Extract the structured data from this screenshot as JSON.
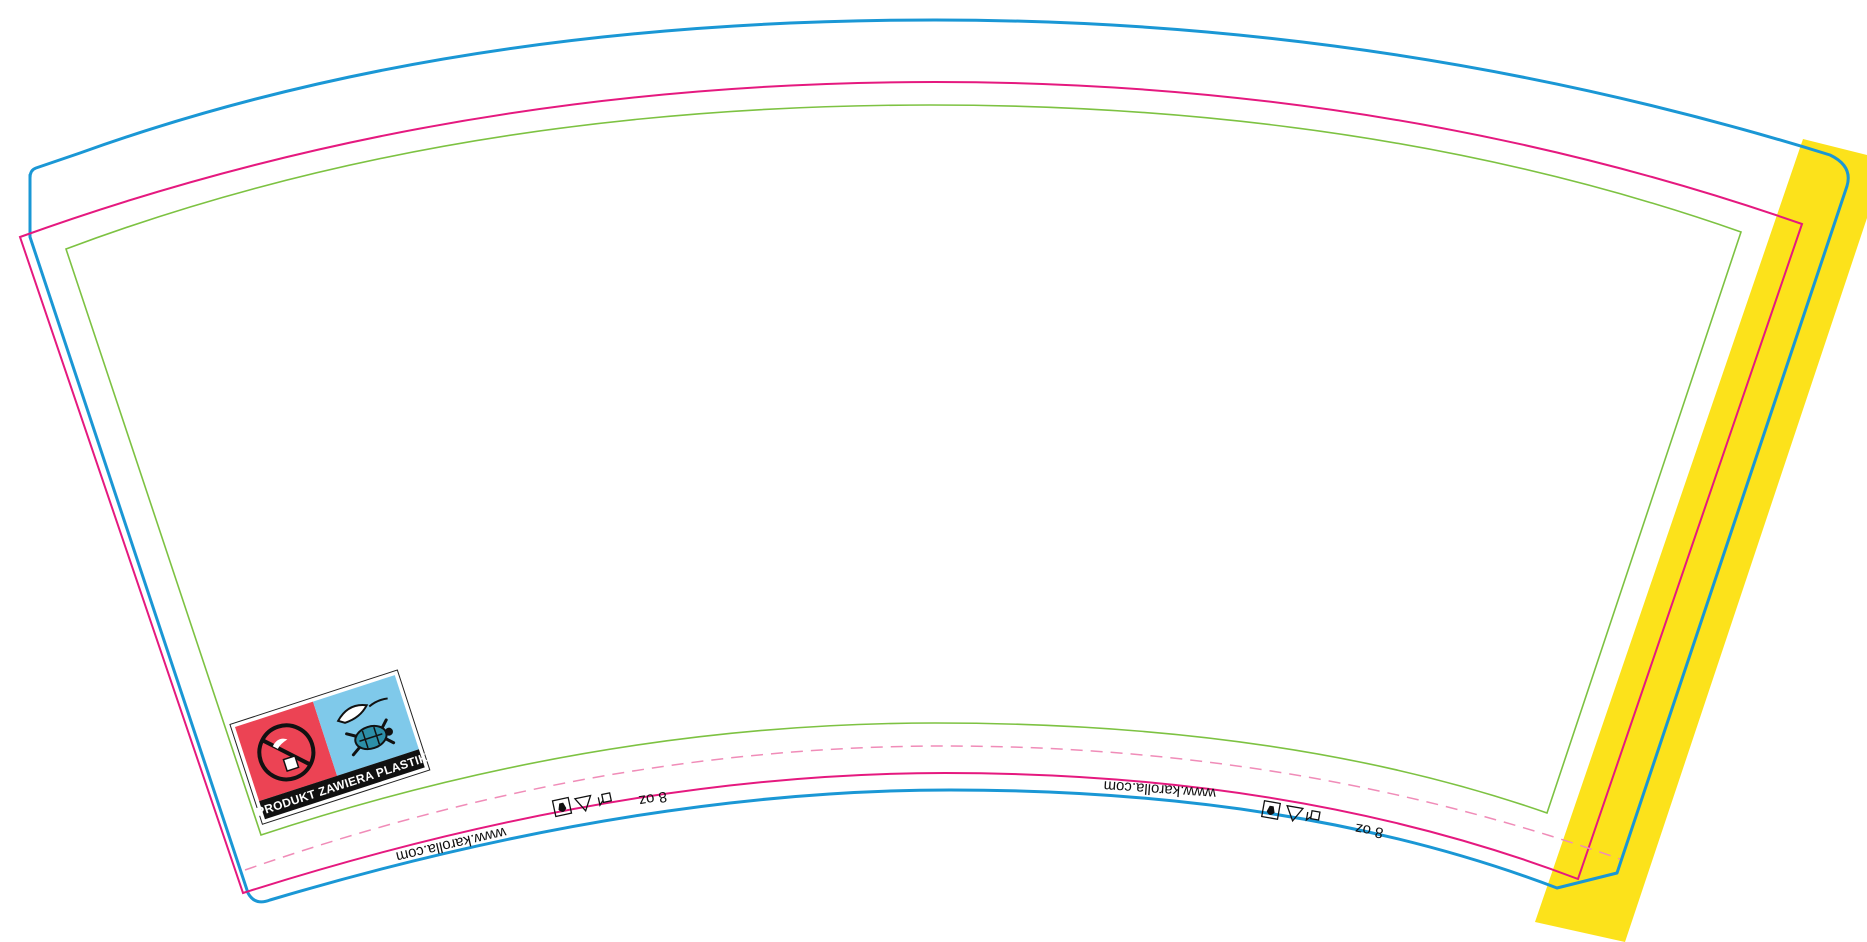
{
  "template": {
    "colors": {
      "background": "#ffffff",
      "cut_line": "#1a97d5",
      "bleed_line": "#e5197f",
      "safe_zone": "#7dc242",
      "glue_area": "#fce21b",
      "seam_dashed": "#f08cb8"
    },
    "footer_left": {
      "website": "www.karolla.com",
      "size": "8 oz",
      "icons": [
        "recycling-hand-icon",
        "recycle-triangle-icon",
        "sorting-hand-icon"
      ]
    },
    "footer_right": {
      "website": "www.karolla.com",
      "size": "8 oz",
      "icons": [
        "recycling-hand-icon",
        "recycle-triangle-icon",
        "sorting-hand-icon"
      ]
    },
    "plastic_badge": {
      "text": "PRODUKT ZAWIERA PLASTIK",
      "left_color": "#ec4354",
      "right_color": "#7fc9ea",
      "band_color": "#111111",
      "left_icon": "no-littering-icon",
      "right_icon": "turtle-plastic-icon"
    }
  }
}
